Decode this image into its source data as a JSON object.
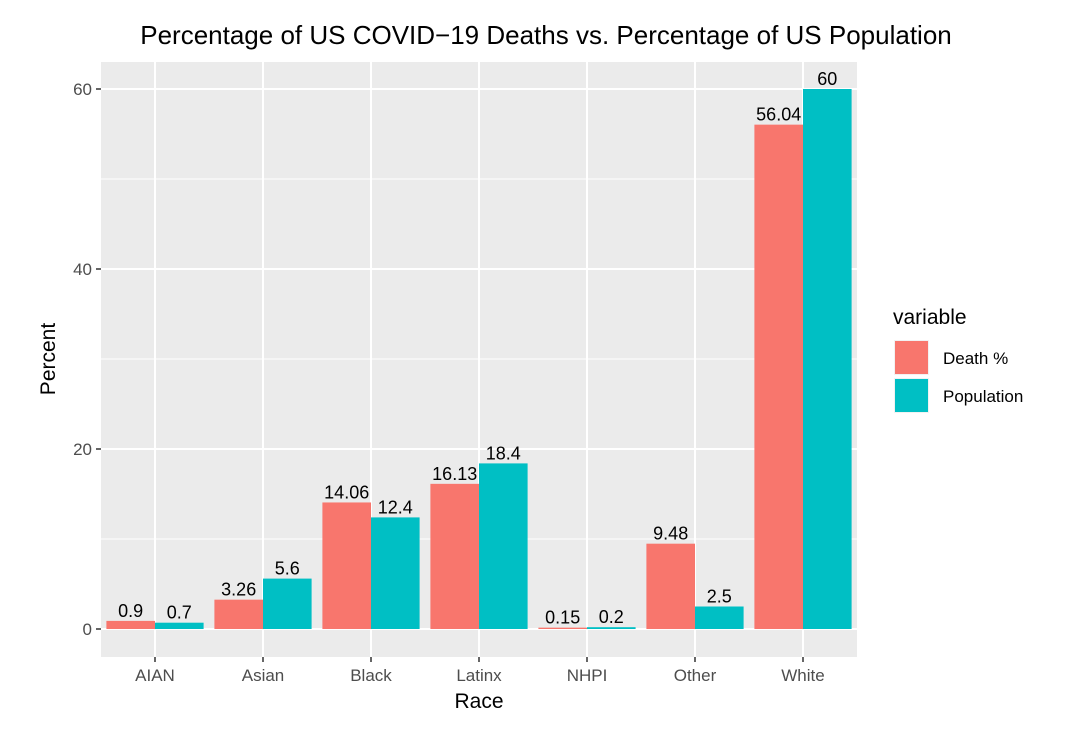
{
  "chart_data": {
    "type": "bar",
    "title": "Percentage of US COVID−19 Deaths vs. Percentage of US Population",
    "xlabel": "Race",
    "ylabel": "Percent",
    "categories": [
      "AIAN",
      "Asian",
      "Black",
      "Latinx",
      "NHPI",
      "Other",
      "White"
    ],
    "series": [
      {
        "name": "Death %",
        "values": [
          0.9,
          3.26,
          14.06,
          16.13,
          0.15,
          9.48,
          56.04
        ],
        "labels": [
          "0.9",
          "3.26",
          "14.06",
          "16.13",
          "0.15",
          "9.48",
          "56.04"
        ],
        "color": "#F8766D"
      },
      {
        "name": "Population",
        "values": [
          0.7,
          5.6,
          12.4,
          18.4,
          0.2,
          2.5,
          60
        ],
        "labels": [
          "0.7",
          "5.6",
          "12.4",
          "18.4",
          "0.2",
          "2.5",
          "60"
        ],
        "color": "#00BFC4"
      }
    ],
    "ylim": [
      0,
      60
    ],
    "yticks": [
      "0",
      "20",
      "40",
      "60"
    ],
    "legend": {
      "title": "variable",
      "position": "right"
    },
    "grid": true,
    "panel_background": "#EBEBEB"
  }
}
